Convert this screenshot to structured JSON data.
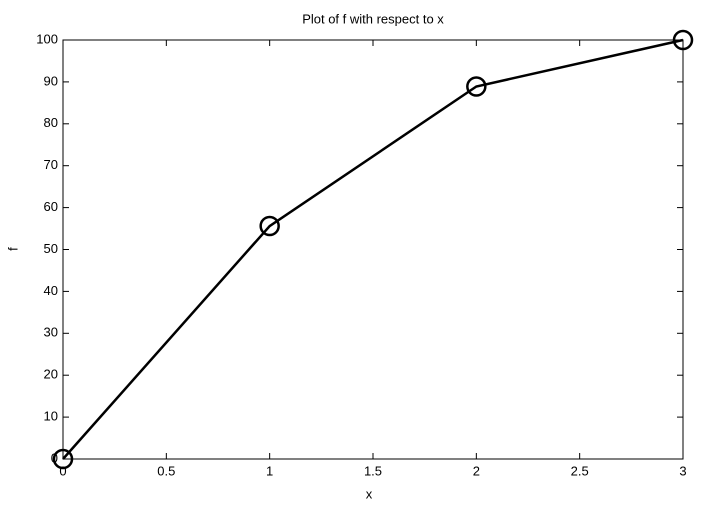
{
  "chart_data": {
    "type": "line",
    "title": "Plot of f with respect to x",
    "x_label": "x",
    "y_label": "f",
    "x": [
      0,
      1,
      2,
      3
    ],
    "series": [
      {
        "values": [
          0,
          55.6,
          88.9,
          100
        ],
        "color": "#000000",
        "marker": "circle"
      }
    ],
    "xlim": [
      0,
      3
    ],
    "xticks": [
      0,
      0.5,
      1,
      1.5,
      2,
      2.5,
      3
    ],
    "ylim": [
      0,
      100
    ],
    "yticks": [
      0,
      10,
      20,
      30,
      40,
      50,
      60,
      70,
      80,
      90,
      100
    ],
    "grid": false
  }
}
